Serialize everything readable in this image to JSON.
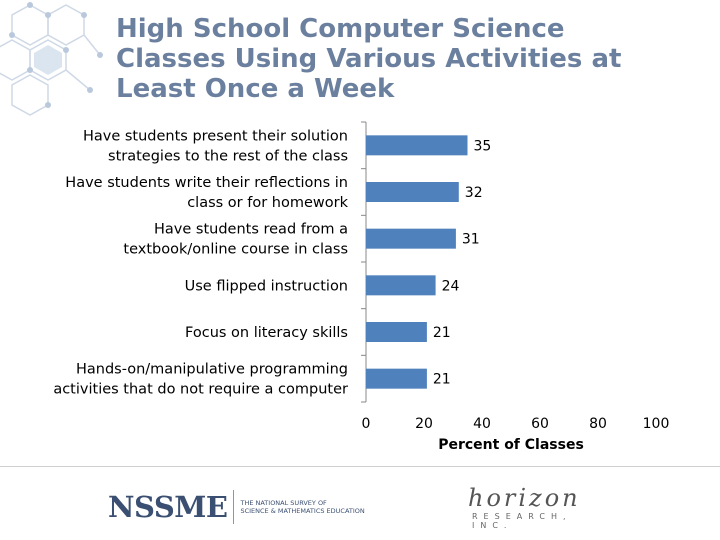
{
  "title_lines": [
    "High School Computer Science",
    "Classes Using Various Activities at",
    "Least Once a Week"
  ],
  "colors": {
    "title": "#6b7f9e",
    "bar": "#4f81bd",
    "deco": "#cfd9e6"
  },
  "chart_data": {
    "type": "bar",
    "orientation": "horizontal",
    "categories": [
      [
        "Have students present their solution",
        "strategies to the rest of the class"
      ],
      [
        "Have students write their reflections in",
        "class or for homework"
      ],
      [
        "Have students read from a",
        "textbook/online course in class"
      ],
      [
        "Use flipped instruction"
      ],
      [
        "Focus on literacy skills"
      ],
      [
        "Hands-on/manipulative programming",
        "activities that do not require a computer"
      ]
    ],
    "values": [
      35,
      32,
      31,
      24,
      21,
      21
    ],
    "xlabel": "Percent of Classes",
    "xlim": [
      0,
      100
    ],
    "xticks": [
      0,
      20,
      40,
      60,
      80,
      100
    ],
    "grid": false,
    "data_labels": true
  },
  "footer": {
    "nssme_word": "NSSME",
    "nssme_sub": [
      "THE NATIONAL SURVEY OF",
      "SCIENCE & MATHEMATICS EDUCATION"
    ],
    "horizon_word": "horizon",
    "horizon_sub": "RESEARCH, INC."
  }
}
